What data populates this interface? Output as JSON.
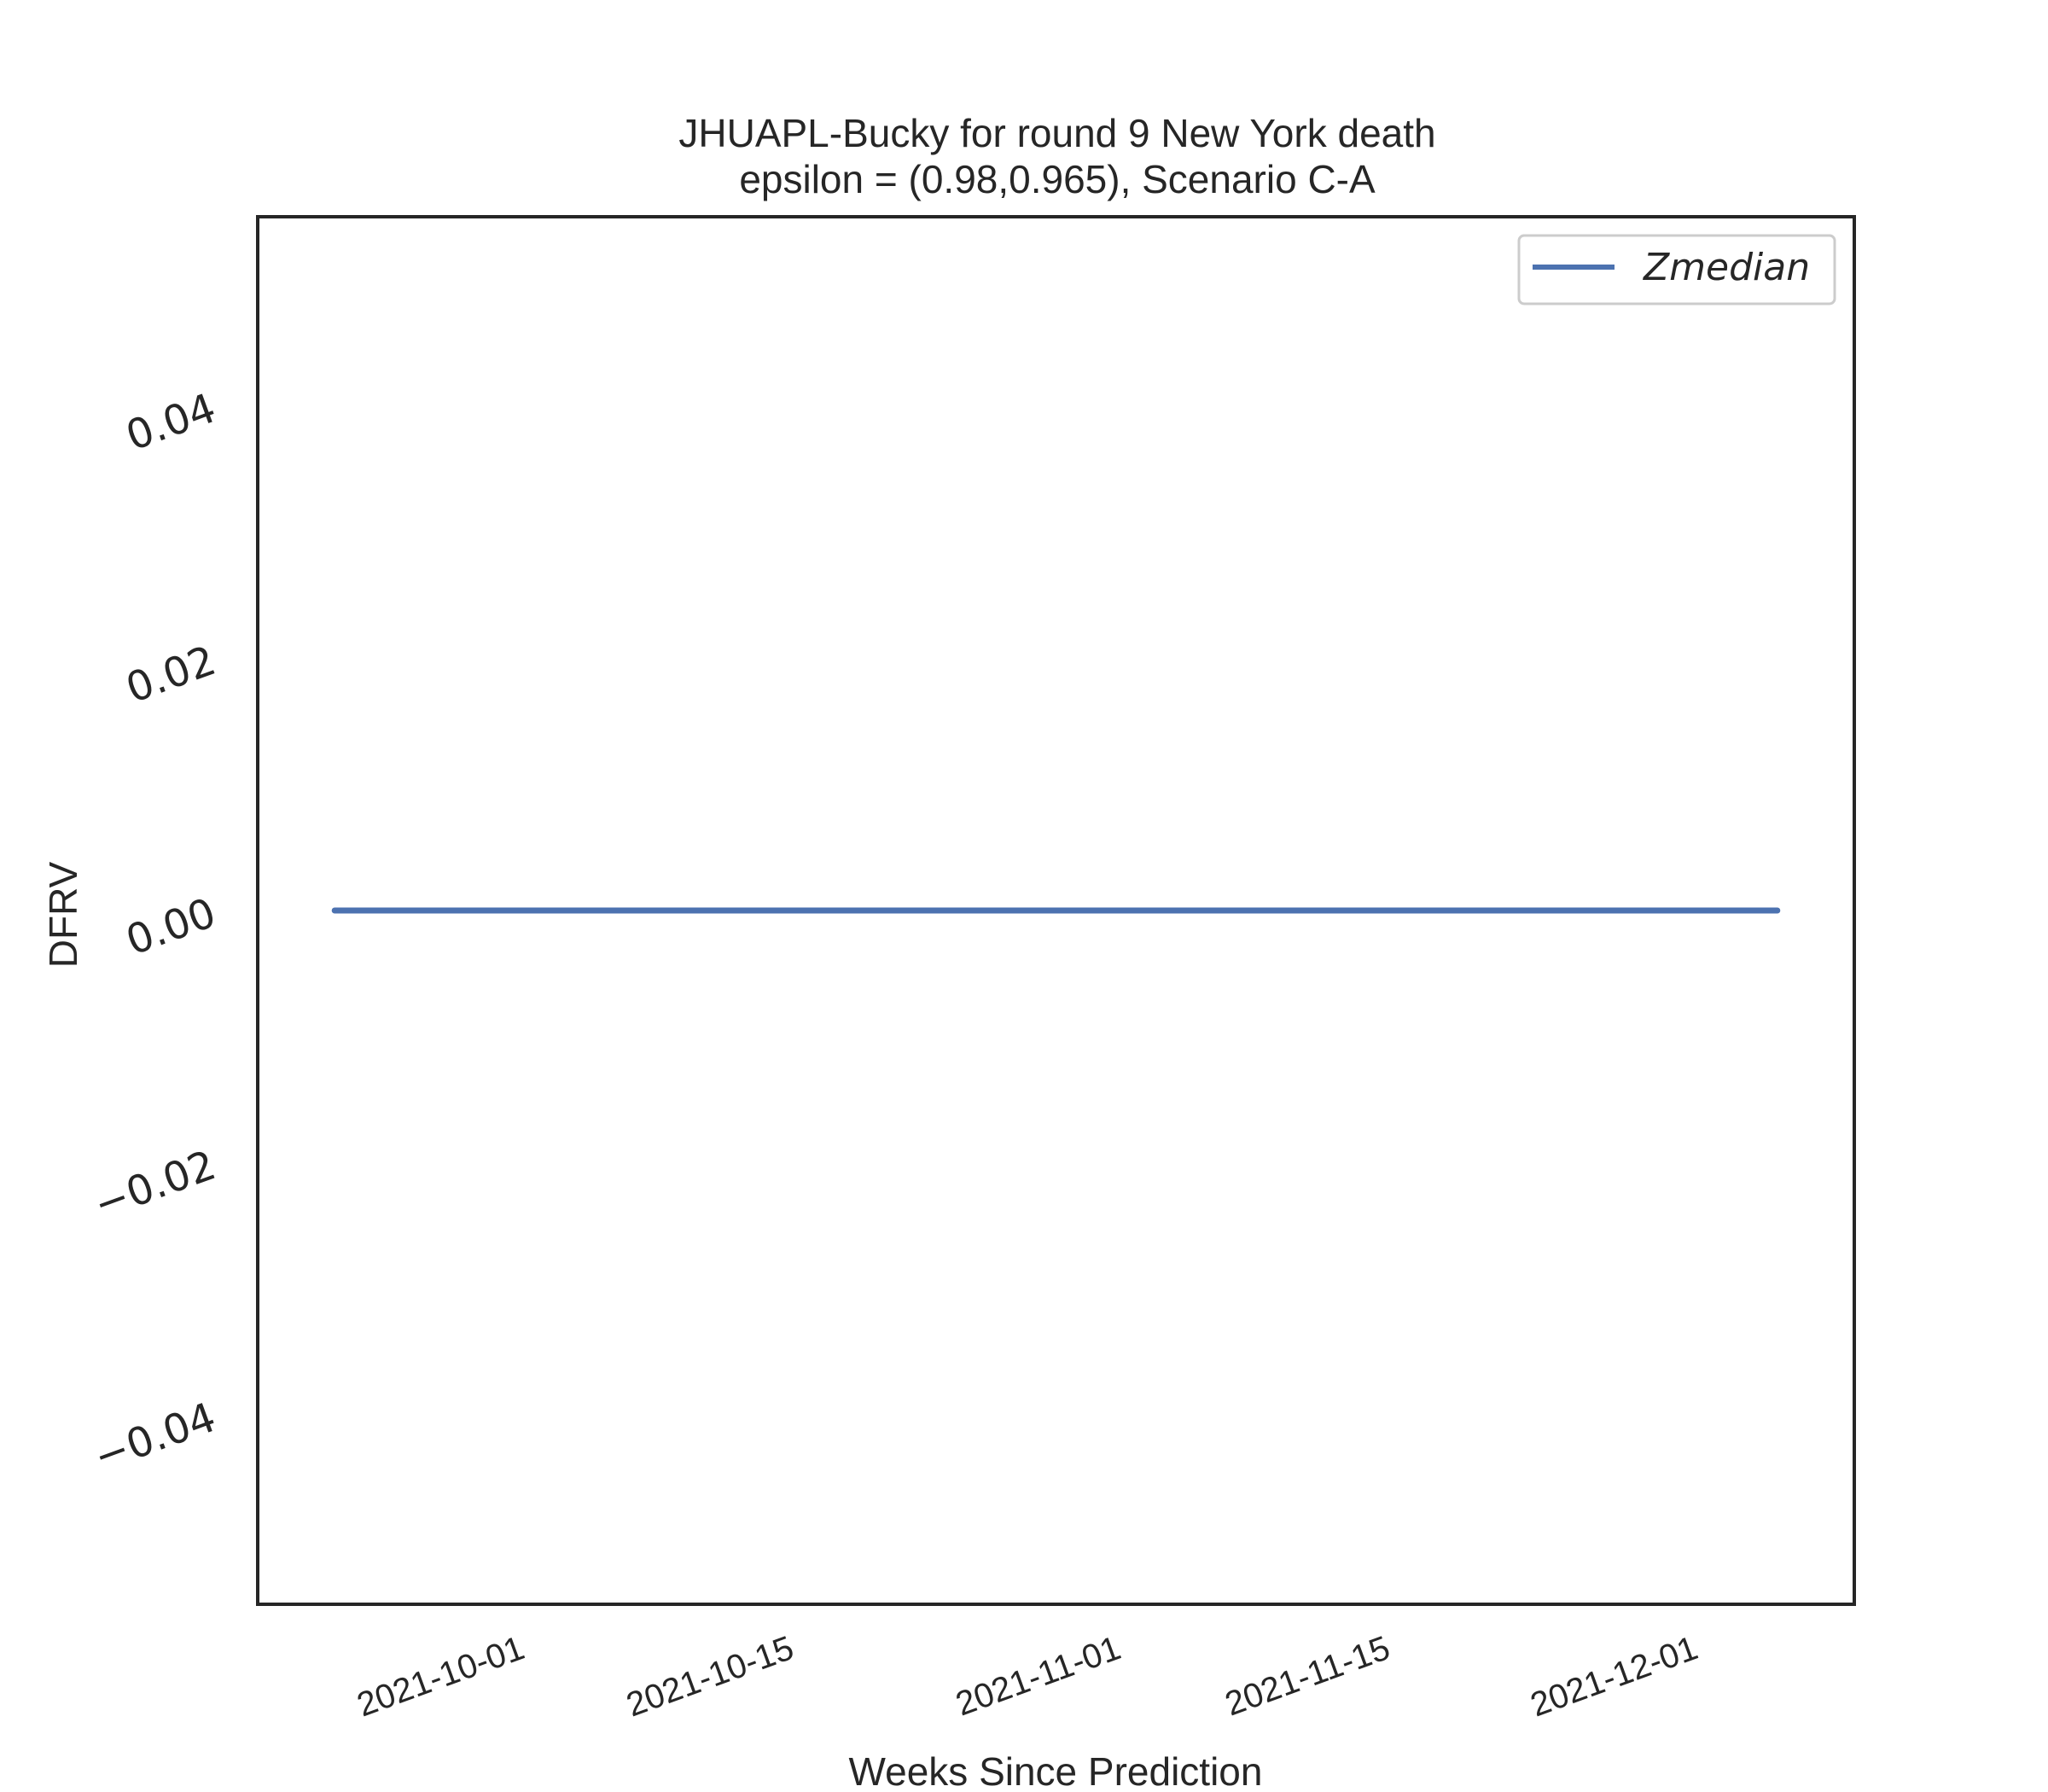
{
  "chart_data": {
    "type": "line",
    "title_line1": "JHUAPL-Bucky for round 9 New York  death",
    "title_line2": "epsilon = (0.98,0.965), Scenario C-A",
    "xlabel": "Weeks Since Prediction",
    "ylabel": "DFRV",
    "x_range": [
      "2021-09-18",
      "2021-12-10"
    ],
    "ylim": [
      -0.055,
      0.055
    ],
    "y_ticks": [
      -0.04,
      -0.02,
      0.0,
      0.02,
      0.04
    ],
    "y_tick_labels": [
      "−0.04",
      "−0.02",
      "0.00",
      "0.02",
      "0.04"
    ],
    "x_ticks": [
      "2021-10-01",
      "2021-10-15",
      "2021-11-01",
      "2021-11-15",
      "2021-12-01"
    ],
    "grid": false,
    "legend_position": "top-right",
    "series": [
      {
        "name": "Zmedian",
        "color": "#4c72b0",
        "x": [
          "2021-09-22",
          "2021-09-29",
          "2021-10-06",
          "2021-10-13",
          "2021-10-20",
          "2021-10-27",
          "2021-11-03",
          "2021-11-10",
          "2021-11-17",
          "2021-11-24",
          "2021-12-01",
          "2021-12-06"
        ],
        "y": [
          0,
          0,
          0,
          0,
          0,
          0,
          0,
          0,
          0,
          0,
          0,
          0
        ]
      }
    ]
  }
}
